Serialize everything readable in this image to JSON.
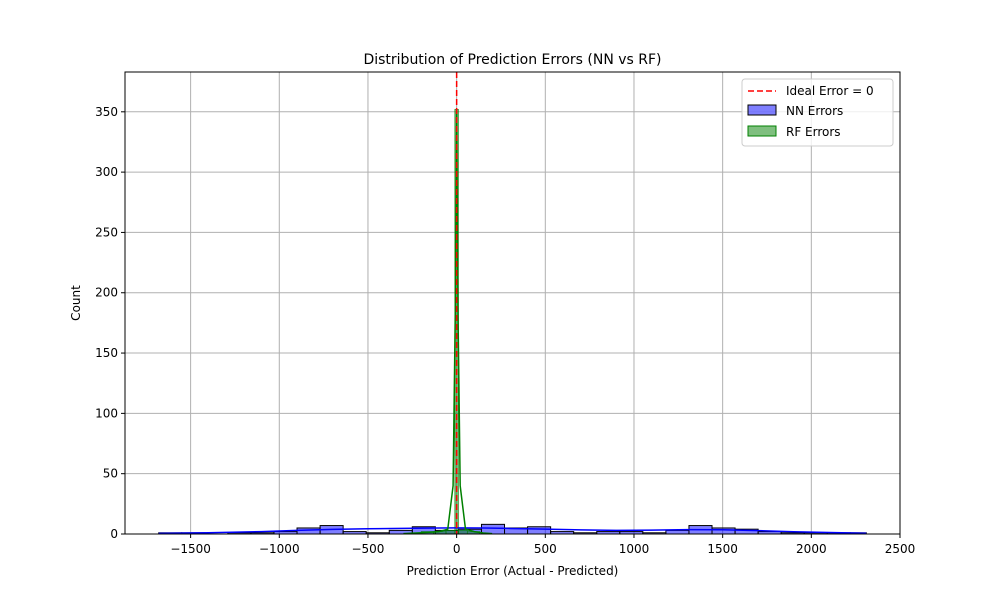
{
  "chart_data": {
    "type": "histogram",
    "title": "Distribution of Prediction Errors (NN vs RF)",
    "xlabel": "Prediction Error (Actual - Predicted)",
    "ylabel": "Count",
    "xlim": [
      -1870,
      2500
    ],
    "ylim": [
      0,
      383
    ],
    "xticks": [
      -1500,
      -1000,
      -500,
      0,
      500,
      1000,
      1500,
      2000,
      2500
    ],
    "yticks": [
      0,
      50,
      100,
      150,
      200,
      250,
      300,
      350
    ],
    "xtick_labels": [
      "−1500",
      "−1000",
      "−500",
      "0",
      "500",
      "1000",
      "1500",
      "2000",
      "2500"
    ],
    "ytick_labels": [
      "0",
      "50",
      "100",
      "150",
      "200",
      "250",
      "300",
      "350"
    ],
    "grid": true,
    "legend_position": "top-right",
    "reference_line": {
      "name": "Ideal Error = 0",
      "x": 0,
      "color": "#ff0000",
      "style": "dashed"
    },
    "series": [
      {
        "name": "NN Errors",
        "color": "#0000ff",
        "bins": [
          {
            "x0": -1680,
            "x1": -1550,
            "count": 1
          },
          {
            "x0": -1550,
            "x1": -1420,
            "count": 1
          },
          {
            "x0": -1420,
            "x1": -1290,
            "count": 0
          },
          {
            "x0": -1290,
            "x1": -1160,
            "count": 1
          },
          {
            "x0": -1160,
            "x1": -1030,
            "count": 1
          },
          {
            "x0": -1030,
            "x1": -900,
            "count": 2
          },
          {
            "x0": -900,
            "x1": -770,
            "count": 5
          },
          {
            "x0": -770,
            "x1": -640,
            "count": 7
          },
          {
            "x0": -640,
            "x1": -510,
            "count": 2
          },
          {
            "x0": -510,
            "x1": -380,
            "count": 1
          },
          {
            "x0": -380,
            "x1": -250,
            "count": 3
          },
          {
            "x0": -250,
            "x1": -120,
            "count": 6
          },
          {
            "x0": -120,
            "x1": 10,
            "count": 3
          },
          {
            "x0": 10,
            "x1": 140,
            "count": 4
          },
          {
            "x0": 140,
            "x1": 270,
            "count": 8
          },
          {
            "x0": 270,
            "x1": 400,
            "count": 5
          },
          {
            "x0": 400,
            "x1": 530,
            "count": 6
          },
          {
            "x0": 530,
            "x1": 660,
            "count": 2
          },
          {
            "x0": 660,
            "x1": 790,
            "count": 1
          },
          {
            "x0": 790,
            "x1": 920,
            "count": 2
          },
          {
            "x0": 920,
            "x1": 1050,
            "count": 2
          },
          {
            "x0": 1050,
            "x1": 1180,
            "count": 1
          },
          {
            "x0": 1180,
            "x1": 1310,
            "count": 3
          },
          {
            "x0": 1310,
            "x1": 1440,
            "count": 7
          },
          {
            "x0": 1440,
            "x1": 1570,
            "count": 5
          },
          {
            "x0": 1570,
            "x1": 1700,
            "count": 4
          },
          {
            "x0": 1700,
            "x1": 1830,
            "count": 2
          },
          {
            "x0": 1830,
            "x1": 1960,
            "count": 1
          },
          {
            "x0": 1960,
            "x1": 2090,
            "count": 1
          },
          {
            "x0": 2090,
            "x1": 2220,
            "count": 1
          },
          {
            "x0": 2220,
            "x1": 2310,
            "count": 1
          }
        ],
        "kde": [
          [
            -1680,
            0.5
          ],
          [
            -1400,
            1.0
          ],
          [
            -1100,
            2.0
          ],
          [
            -900,
            3.0
          ],
          [
            -700,
            3.8
          ],
          [
            -500,
            4.3
          ],
          [
            -300,
            4.7
          ],
          [
            -100,
            5.0
          ],
          [
            0,
            5.1
          ],
          [
            150,
            5.0
          ],
          [
            300,
            4.6
          ],
          [
            500,
            4.0
          ],
          [
            700,
            3.4
          ],
          [
            900,
            3.0
          ],
          [
            1100,
            3.2
          ],
          [
            1300,
            3.6
          ],
          [
            1500,
            3.5
          ],
          [
            1700,
            2.8
          ],
          [
            1900,
            1.9
          ],
          [
            2100,
            1.2
          ],
          [
            2310,
            0.6
          ]
        ]
      },
      {
        "name": "RF Errors",
        "color": "#008000",
        "bins": [
          {
            "x0": -260,
            "x1": -200,
            "count": 1
          },
          {
            "x0": -200,
            "x1": -130,
            "count": 2
          },
          {
            "x0": -130,
            "x1": -60,
            "count": 2
          },
          {
            "x0": -60,
            "x1": -10,
            "count": 3
          },
          {
            "x0": -10,
            "x1": 10,
            "count": 352
          },
          {
            "x0": 10,
            "x1": 60,
            "count": 3
          },
          {
            "x0": 60,
            "x1": 130,
            "count": 2
          }
        ],
        "kde": [
          [
            -300,
            0.3
          ],
          [
            -200,
            1.0
          ],
          [
            -100,
            2.0
          ],
          [
            -50,
            4.0
          ],
          [
            -20,
            40
          ],
          [
            -8,
            180
          ],
          [
            0,
            350
          ],
          [
            8,
            180
          ],
          [
            20,
            40
          ],
          [
            50,
            4.0
          ],
          [
            100,
            2.0
          ],
          [
            150,
            0.8
          ],
          [
            200,
            0.3
          ]
        ]
      }
    ]
  }
}
